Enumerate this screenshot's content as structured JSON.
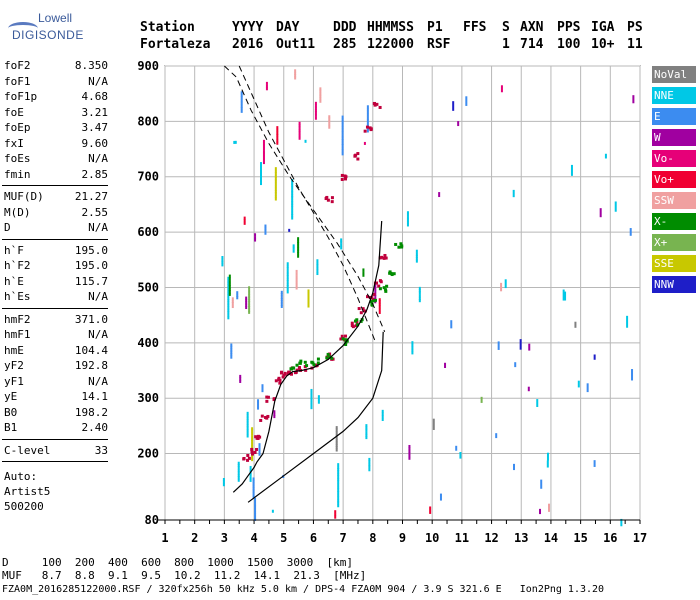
{
  "logo": {
    "line1": "Lowell",
    "line2": "DIGISONDE"
  },
  "header": {
    "row1": [
      "Station",
      "YYYY",
      "DAY",
      "DDD",
      "HHMMSS",
      "P1",
      "FFS",
      "S",
      "AXN",
      "PPS",
      "IGA",
      "PS"
    ],
    "row2": [
      "Fortaleza",
      "2016",
      "Out11",
      "285",
      "122000",
      "RSF",
      "1",
      "714",
      "100",
      "10+",
      "11"
    ]
  },
  "params_group1": [
    {
      "label": "foF2",
      "value": "8.350"
    },
    {
      "label": "foF1",
      "value": "N/A"
    },
    {
      "label": "foF1p",
      "value": "4.68"
    },
    {
      "label": "foE",
      "value": "3.21"
    },
    {
      "label": "foEp",
      "value": "3.47"
    },
    {
      "label": "fxI",
      "value": "9.60"
    },
    {
      "label": "foEs",
      "value": "N/A"
    },
    {
      "label": "fmin",
      "value": "2.85"
    }
  ],
  "params_group2": [
    {
      "label": "MUF(D)",
      "value": "21.27"
    },
    {
      "label": "M(D)",
      "value": "2.55"
    },
    {
      "label": "D",
      "value": "N/A"
    }
  ],
  "params_group3": [
    {
      "label": "h`F",
      "value": "195.0"
    },
    {
      "label": "h`F2",
      "value": "195.0"
    },
    {
      "label": "h`E",
      "value": "115.7"
    },
    {
      "label": "h`Es",
      "value": "N/A"
    }
  ],
  "params_group4": [
    {
      "label": "hmF2",
      "value": "371.0"
    },
    {
      "label": "hmF1",
      "value": "N/A"
    },
    {
      "label": "hmE",
      "value": "104.4"
    },
    {
      "label": "yF2",
      "value": "192.8"
    },
    {
      "label": "yF1",
      "value": "N/A"
    },
    {
      "label": "yE",
      "value": "14.1"
    },
    {
      "label": "B0",
      "value": "198.2"
    },
    {
      "label": "B1",
      "value": "2.40"
    }
  ],
  "clevel": {
    "label": "C-level",
    "value": "33"
  },
  "auto": {
    "line1": "Auto:",
    "line2": "Artist5",
    "line3": "500200"
  },
  "legend": [
    {
      "name": "NoVal",
      "color": "#808080"
    },
    {
      "name": "NNE",
      "color": "#00c8e6"
    },
    {
      "name": "E",
      "color": "#3c8cf0"
    },
    {
      "name": "W",
      "color": "#a000a0"
    },
    {
      "name": "Vo-",
      "color": "#e60078"
    },
    {
      "name": "Vo+",
      "color": "#f00032"
    },
    {
      "name": "SSW",
      "color": "#f0a0a0"
    },
    {
      "name": "X-",
      "color": "#008c00"
    },
    {
      "name": "X+",
      "color": "#78b450"
    },
    {
      "name": "SSE",
      "color": "#c8c800"
    },
    {
      "name": "NNW",
      "color": "#1e1ec8"
    }
  ],
  "bottom": {
    "d_line": "D     100  200  400  600  800  1000  1500  3000  [km]",
    "muf_line": "MUF   8.7  8.8  9.1  9.5  10.2  11.2  14.1  21.3  [MHz]",
    "file_line": "FZA0M_2016285122000.RSF / 320fx256h 50 kHz 5.0 km / DPS-4 FZA0M 904 / 3.9 S 321.6 E   Ion2Png 1.3.20"
  },
  "chart_data": {
    "type": "scatter",
    "title": "",
    "xlabel": "",
    "ylabel": "",
    "xlim": [
      1,
      17
    ],
    "ylim": [
      80,
      900
    ],
    "x_ticks": [
      1,
      2,
      3,
      4,
      5,
      6,
      7,
      8,
      9,
      10,
      11,
      12,
      13,
      14,
      15,
      16,
      17
    ],
    "y_ticks": [
      80,
      200,
      300,
      400,
      500,
      600,
      700,
      800,
      900
    ],
    "grid": true,
    "series": [
      {
        "name": "O-trace",
        "color": "#c0003c",
        "x": [
          3.7,
          3.9,
          4.1,
          4.3,
          4.5,
          4.7,
          4.9,
          5.1,
          5.3,
          5.6,
          6.0,
          6.5,
          7.0,
          7.3,
          7.6,
          7.9,
          8.1,
          8.3
        ],
        "y": [
          195,
          205,
          230,
          265,
          300,
          335,
          345,
          350,
          352,
          356,
          360,
          378,
          410,
          435,
          460,
          485,
          510,
          560
        ]
      },
      {
        "name": "X-trace",
        "color": "#008c00",
        "x": [
          5.3,
          5.6,
          6.0,
          6.5,
          7.0,
          7.5,
          8.0,
          8.3,
          8.6,
          8.8
        ],
        "y": [
          360,
          365,
          368,
          380,
          405,
          440,
          475,
          500,
          530,
          580
        ]
      },
      {
        "name": "upper-red",
        "color": "#c0003c",
        "x": [
          6.5,
          7.0,
          7.4,
          7.8,
          8.1
        ],
        "y": [
          660,
          700,
          740,
          790,
          830
        ]
      },
      {
        "name": "profile",
        "color": "#000000",
        "x": [
          3.3,
          3.6,
          3.8,
          4.0,
          4.1,
          4.3,
          4.5,
          4.7,
          4.9,
          5.1,
          5.3,
          5.6,
          6.0,
          6.5,
          7.0,
          7.5,
          7.8,
          8.0,
          8.2,
          8.3
        ],
        "y": [
          130,
          145,
          160,
          175,
          185,
          200,
          240,
          295,
          325,
          340,
          348,
          350,
          355,
          370,
          395,
          430,
          460,
          490,
          540,
          620
        ]
      },
      {
        "name": "profile-lower",
        "color": "#000000",
        "x": [
          3.8,
          5.0,
          6.0,
          7.0,
          7.5,
          8.0,
          8.3,
          8.35
        ],
        "y": [
          112,
          160,
          200,
          240,
          265,
          300,
          350,
          420
        ]
      }
    ],
    "marker_dots_note": "Dense colored vertical echo fringes between 3 and 9.6 MHz"
  }
}
